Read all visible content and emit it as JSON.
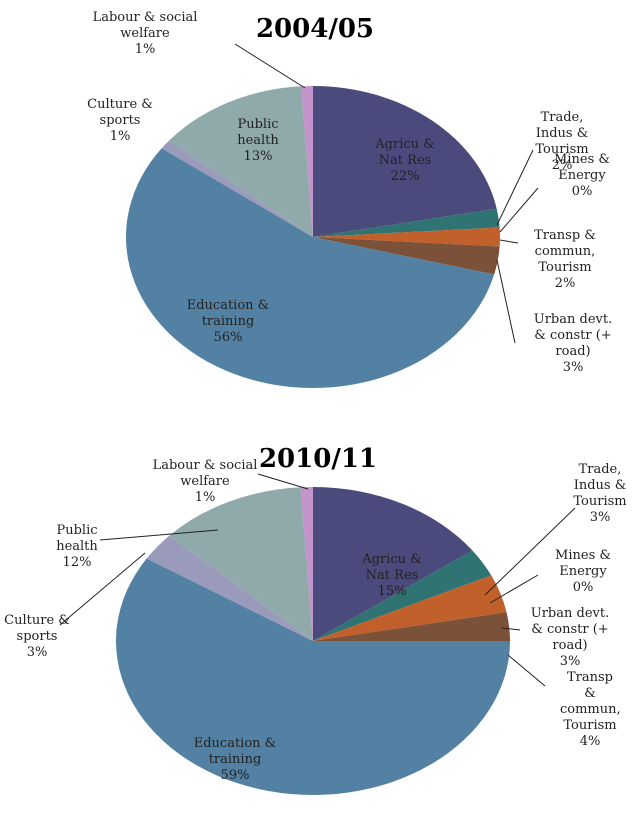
{
  "chart_data": [
    {
      "type": "pie",
      "title": "2004/05",
      "categories": [
        "Agricu & Nat Res",
        "Trade, Indus & Tourism",
        "Mines & Energy",
        "Transp & commun, Tourism",
        "Urban devt. & constr (+ road)",
        "Education & training",
        "Culture & sports",
        "Public health",
        "Labour & social welfare"
      ],
      "values": [
        22,
        2,
        0,
        2,
        3,
        56,
        1,
        13,
        1
      ],
      "value_labels": [
        "22%",
        "2%",
        "0%",
        "2%",
        "3%",
        "56%",
        "1%",
        "13%",
        "1%"
      ],
      "colors": [
        "#4b4a7c",
        "#2f7373",
        "#8e3b90",
        "#c1602b",
        "#7b5139",
        "#5281a3",
        "#9a9abb",
        "#90a9aa",
        "#c393cb"
      ]
    },
    {
      "type": "pie",
      "title": "2010/11",
      "categories": [
        "Agricu & Nat Res",
        "Trade, Indus & Tourism",
        "Mines & Energy",
        "Transp & commun, Tourism",
        "Urban devt. & constr (+ road)",
        "Education & training",
        "Culture & sports",
        "Public health",
        "Labour & social welfare"
      ],
      "values": [
        15,
        3,
        0,
        4,
        3,
        59,
        3,
        12,
        1
      ],
      "value_labels": [
        "15%",
        "3%",
        "0%",
        "4%",
        "3%",
        "59%",
        "3%",
        "12%",
        "1%"
      ],
      "colors": [
        "#4b4a7c",
        "#2f7373",
        "#8e3b90",
        "#c1602b",
        "#7b5139",
        "#5281a3",
        "#9a9abb",
        "#90a9aa",
        "#c393cb"
      ]
    }
  ]
}
